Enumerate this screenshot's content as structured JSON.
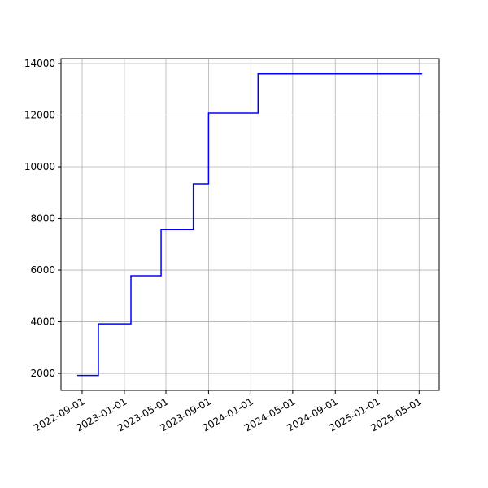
{
  "chart_data": {
    "type": "line",
    "step": "post",
    "color": "#0000ff",
    "grid": true,
    "x": [
      "2022-08-18",
      "2022-10-18",
      "2023-01-20",
      "2023-04-17",
      "2023-07-19",
      "2023-09-01",
      "2024-01-22",
      "2025-05-10"
    ],
    "values": [
      1920,
      3920,
      5780,
      7570,
      9340,
      12080,
      13600,
      13600
    ],
    "xlim": [
      "2022-07-02",
      "2025-06-28"
    ],
    "xticks": [
      "2022-09-01",
      "2023-01-01",
      "2023-05-01",
      "2023-09-01",
      "2024-01-01",
      "2024-05-01",
      "2024-09-01",
      "2025-01-01",
      "2025-05-01"
    ],
    "ylim": [
      1340,
      14190
    ],
    "yticks": [
      2000,
      4000,
      6000,
      8000,
      10000,
      12000,
      14000
    ]
  }
}
